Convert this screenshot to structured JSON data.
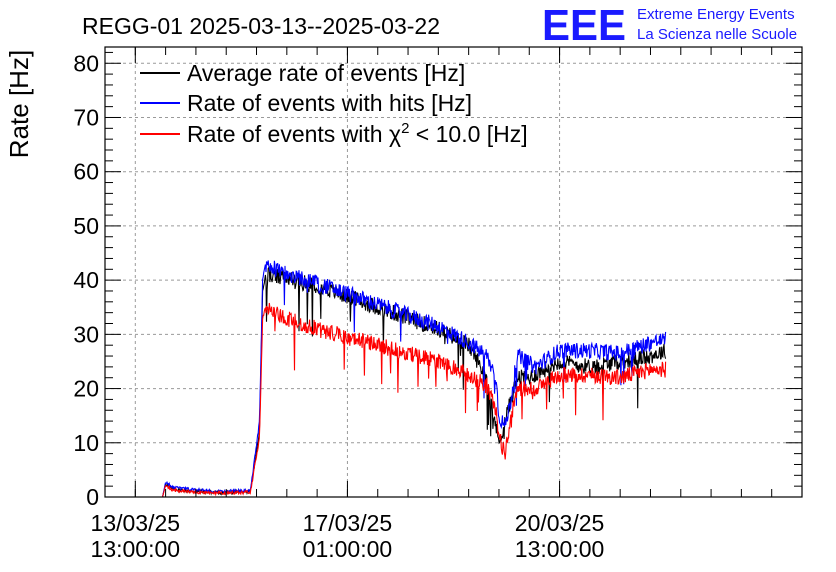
{
  "chart_data": {
    "type": "line",
    "title": "REGG-01 2025-03-13--2025-03-22",
    "ylabel": "Rate [Hz]",
    "xlabel": "",
    "ylim": [
      0,
      83
    ],
    "yticks": [
      0,
      10,
      20,
      30,
      40,
      50,
      60,
      70,
      80
    ],
    "x_ticks": [
      {
        "date": "13/03/25",
        "time": "13:00:00",
        "day": 0
      },
      {
        "date": "17/03/25",
        "time": "01:00:00",
        "day": 3.5
      },
      {
        "date": "20/03/25",
        "time": "13:00:00",
        "day": 7
      }
    ],
    "xlim_days": [
      -0.5,
      11.0
    ],
    "grid": true,
    "legend_position": "top-left",
    "series": [
      {
        "name": "Average rate of events [Hz]",
        "color": "#000000",
        "points": [
          [
            0.45,
            0
          ],
          [
            0.5,
            2.5
          ],
          [
            0.6,
            1.5
          ],
          [
            1.0,
            1.0
          ],
          [
            1.4,
            0.8
          ],
          [
            1.9,
            1.0
          ],
          [
            2.05,
            12
          ],
          [
            2.1,
            38
          ],
          [
            2.15,
            41
          ],
          [
            3.0,
            39
          ],
          [
            4.0,
            35
          ],
          [
            5.0,
            31
          ],
          [
            5.5,
            28
          ],
          [
            5.8,
            22
          ],
          [
            6.0,
            10
          ],
          [
            6.15,
            16
          ],
          [
            6.3,
            22
          ],
          [
            6.5,
            22
          ],
          [
            7.0,
            25
          ],
          [
            7.5,
            24
          ],
          [
            8.0,
            25
          ],
          [
            8.5,
            26
          ],
          [
            8.75,
            27
          ]
        ]
      },
      {
        "name": "Rate of events with hits [Hz]",
        "color": "#0000ff",
        "points": [
          [
            0.45,
            0
          ],
          [
            0.5,
            2.8
          ],
          [
            0.6,
            1.8
          ],
          [
            1.0,
            1.3
          ],
          [
            1.4,
            1.0
          ],
          [
            1.9,
            1.2
          ],
          [
            2.05,
            14
          ],
          [
            2.1,
            40
          ],
          [
            2.15,
            43
          ],
          [
            2.5,
            41
          ],
          [
            3.0,
            39.5
          ],
          [
            3.5,
            37.5
          ],
          [
            4.0,
            35.5
          ],
          [
            4.5,
            33.5
          ],
          [
            5.0,
            31.5
          ],
          [
            5.5,
            28.5
          ],
          [
            5.8,
            26
          ],
          [
            5.95,
            22
          ],
          [
            6.0,
            15
          ],
          [
            6.1,
            13
          ],
          [
            6.2,
            18
          ],
          [
            6.3,
            26
          ],
          [
            6.6,
            24
          ],
          [
            7.0,
            27
          ],
          [
            7.5,
            27
          ],
          [
            8.0,
            26.5
          ],
          [
            8.5,
            28.5
          ],
          [
            8.75,
            29
          ]
        ]
      },
      {
        "name": "Rate of events with χ² < 10.0 [Hz]",
        "color": "#ff0000",
        "points": [
          [
            0.45,
            0
          ],
          [
            0.5,
            2.2
          ],
          [
            0.6,
            1.3
          ],
          [
            1.0,
            0.9
          ],
          [
            1.4,
            0.7
          ],
          [
            1.9,
            0.9
          ],
          [
            2.05,
            11
          ],
          [
            2.1,
            33
          ],
          [
            2.15,
            35
          ],
          [
            2.5,
            33
          ],
          [
            3.0,
            31
          ],
          [
            3.5,
            29.5
          ],
          [
            4.0,
            28
          ],
          [
            4.5,
            26.5
          ],
          [
            5.0,
            25
          ],
          [
            5.5,
            22.5
          ],
          [
            5.8,
            20.5
          ],
          [
            5.95,
            16
          ],
          [
            6.0,
            11
          ],
          [
            6.1,
            8
          ],
          [
            6.2,
            14
          ],
          [
            6.3,
            20
          ],
          [
            6.6,
            20
          ],
          [
            7.0,
            22.5
          ],
          [
            7.5,
            22.5
          ],
          [
            8.0,
            22
          ],
          [
            8.5,
            23.5
          ],
          [
            8.75,
            23.5
          ]
        ]
      }
    ],
    "legend_labels": [
      {
        "pre": "Average rate of events [Hz]",
        "sup": "",
        "post": ""
      },
      {
        "pre": "Rate of events with hits [Hz]",
        "sup": "",
        "post": ""
      },
      {
        "pre": "Rate of events with χ",
        "sup": "2",
        "post": " < 10.0 [Hz]"
      }
    ]
  },
  "logo": {
    "letters": "EEE",
    "line1": "Extreme Energy Events",
    "line2": "La Scienza nelle Scuole",
    "color": "#1a1aff"
  }
}
